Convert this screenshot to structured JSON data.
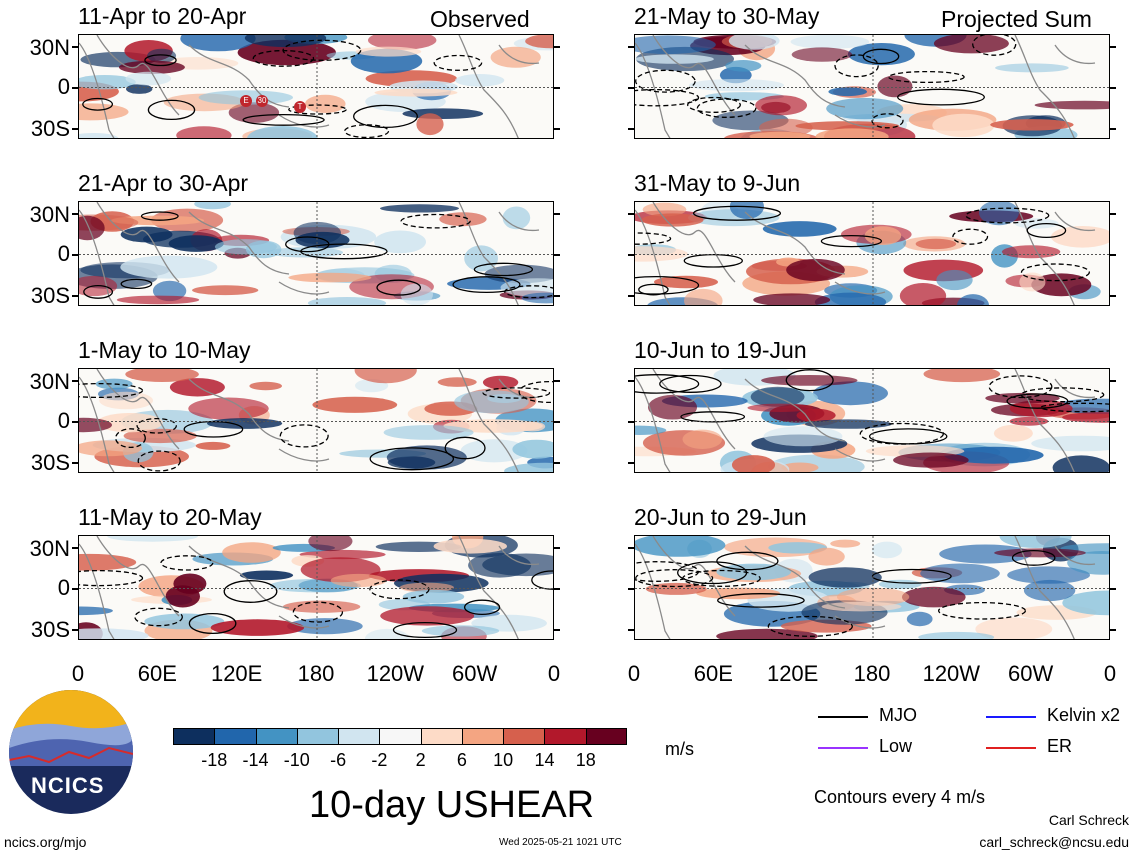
{
  "chart_data": {
    "type": "heatmap",
    "title": "10-day USHEAR",
    "unit": "m/s",
    "contour_note": "Contours every 4 m/s",
    "y_axis_ticks": [
      "30N",
      "0",
      "30S"
    ],
    "x_axis_ticks": [
      "0",
      "60E",
      "120E",
      "180",
      "120W",
      "60W",
      "0"
    ],
    "colorbar": {
      "ticks": [
        "-18",
        "-14",
        "-10",
        "-6",
        "-2",
        "2",
        "6",
        "10",
        "14",
        "18"
      ],
      "colors": [
        "#0d2f5e",
        "#2166ac",
        "#4393c3",
        "#92c5de",
        "#d1e5f0",
        "#f7f7f7",
        "#fddbc7",
        "#f4a582",
        "#d6604d",
        "#b2182b",
        "#67001f"
      ]
    },
    "columns": [
      {
        "header": "Observed",
        "panels": [
          {
            "period": "11-Apr to 20-Apr"
          },
          {
            "period": "21-Apr to 30-Apr"
          },
          {
            "period": "1-May to 10-May"
          },
          {
            "period": "11-May to 20-May"
          }
        ]
      },
      {
        "header": "Projected Sum",
        "panels": [
          {
            "period": "21-May to 30-May"
          },
          {
            "period": "31-May to 9-Jun"
          },
          {
            "period": "10-Jun to 19-Jun"
          },
          {
            "period": "20-Jun to 29-Jun"
          }
        ]
      }
    ],
    "legend": [
      {
        "name": "MJO",
        "color": "#000000"
      },
      {
        "name": "Kelvin x2",
        "color": "#1a1aff"
      },
      {
        "name": "Low",
        "color": "#9933ff"
      },
      {
        "name": "ER",
        "color": "#e02020"
      }
    ],
    "storm_markers": [
      "E",
      "30",
      "T"
    ]
  },
  "footer": {
    "logo_text": "NCICS",
    "site": "ncics.org/mjo",
    "timestamp": "Wed 2025-05-21 1021 UTC",
    "author": "Carl Schreck",
    "email": "carl_schreck@ncsu.edu"
  }
}
